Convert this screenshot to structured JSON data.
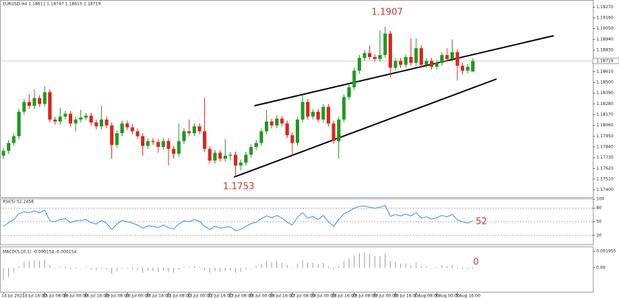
{
  "chart_data": [
    {
      "type": "candlestick",
      "title": "EURUSD,H4  1.18611 1.18747 1.18610 1.18719",
      "up_color": "#1f9a1f",
      "down_color": "#e0241b",
      "grid": false,
      "annotations": [
        "1.1907",
        "1.1753"
      ],
      "ylim": [
        1.17327,
        1.19322
      ],
      "yticks": [
        {
          "value": 1.174,
          "label": "1.17400"
        },
        {
          "value": 1.1751,
          "label": "1.17510"
        },
        {
          "value": 1.1762,
          "label": "1.17620"
        },
        {
          "value": 1.1773,
          "label": "1.17730"
        },
        {
          "value": 1.1784,
          "label": "1.17840"
        },
        {
          "value": 1.1795,
          "label": "1.17950"
        },
        {
          "value": 1.1806,
          "label": "1.18060"
        },
        {
          "value": 1.1817,
          "label": "1.18170"
        },
        {
          "value": 1.1828,
          "label": "1.18280"
        },
        {
          "value": 1.1839,
          "label": "1.18390"
        },
        {
          "value": 1.185,
          "label": "1.18500"
        },
        {
          "value": 1.1861,
          "label": "1.18610"
        },
        {
          "value": 1.1883,
          "label": "1.18830"
        },
        {
          "value": 1.1894,
          "label": "1.18940"
        },
        {
          "value": 1.1905,
          "label": "1.19050"
        },
        {
          "value": 1.1916,
          "label": "1.19160"
        },
        {
          "value": 1.1927,
          "label": "1.19270"
        }
      ],
      "categories": [
        "14 Jul 2021",
        null,
        null,
        null,
        "14 Jul 16:00",
        null,
        null,
        null,
        "15 Jul 08:00",
        null,
        null,
        null,
        "16 Jul 00:00",
        null,
        null,
        null,
        "16 Jul 16:00",
        null,
        null,
        null,
        "19 Jul 08:00",
        null,
        null,
        null,
        "20 Jul 00:00",
        null,
        null,
        null,
        "20 Jul 16:00",
        null,
        null,
        null,
        "21 Jul 08:00",
        null,
        null,
        null,
        "22 Jul 00:00",
        null,
        null,
        null,
        "22 Jul 16:00",
        null,
        null,
        null,
        "23 Jul 08:00",
        null,
        null,
        null,
        "26 Jul 00:00",
        null,
        null,
        null,
        "26 Jul 16:00",
        null,
        null,
        null,
        "27 Jul 08:00",
        null,
        null,
        null,
        "28 Jul 00:00",
        null,
        null,
        null,
        "28 Jul 16:00",
        null,
        null,
        null,
        "29 Jul 08:00",
        null,
        null,
        null,
        "30 Jul 00:00",
        null,
        null,
        null,
        "30 Jul 16:00",
        null,
        null,
        null,
        "2 Aug 08:00",
        null,
        null,
        null,
        "3 Aug 00:00",
        null,
        null,
        null,
        "3 Aug 16:00",
        null,
        null,
        null
      ],
      "open": [
        1.1775,
        1.178,
        1.1788,
        1.1795,
        1.182,
        1.183,
        1.1826,
        1.1834,
        1.1828,
        1.184,
        1.1812,
        1.181,
        1.1815,
        1.1818,
        1.1808,
        1.1812,
        1.1814,
        1.1816,
        1.1809,
        1.1805,
        1.1812,
        1.1806,
        1.1786,
        1.1798,
        1.1808,
        1.1804,
        1.18,
        1.1795,
        1.1785,
        1.179,
        1.1789,
        1.1784,
        1.179,
        1.1782,
        1.1777,
        1.179,
        1.18,
        1.1798,
        1.1805,
        1.18,
        1.1782,
        1.177,
        1.1778,
        1.1772,
        1.1775,
        1.1776,
        1.1765,
        1.1768,
        1.1776,
        1.1784,
        1.1788,
        1.18,
        1.181,
        1.1806,
        1.1813,
        1.1808,
        1.1796,
        1.1788,
        1.1812,
        1.183,
        1.1815,
        1.182,
        1.1812,
        1.1825,
        1.1808,
        1.179,
        1.1812,
        1.1835,
        1.1845,
        1.1862,
        1.1875,
        1.188,
        1.1876,
        1.1874,
        1.1878,
        1.19,
        1.1865,
        1.1872,
        1.1868,
        1.1876,
        1.187,
        1.1885,
        1.1868,
        1.1872,
        1.1866,
        1.187,
        1.1878,
        1.1874,
        1.1881,
        1.1867,
        1.1862,
        1.18611
      ],
      "high": [
        1.1783,
        1.1791,
        1.1798,
        1.1823,
        1.1833,
        1.1838,
        1.1843,
        1.1837,
        1.1846,
        1.1843,
        1.1815,
        1.1824,
        1.1821,
        1.1821,
        1.1815,
        1.1822,
        1.1819,
        1.1819,
        1.1812,
        1.1826,
        1.1815,
        1.1809,
        1.1801,
        1.1811,
        1.1811,
        1.1807,
        1.1803,
        1.1798,
        1.1793,
        1.1793,
        1.1792,
        1.1793,
        1.1793,
        1.1785,
        1.1808,
        1.1803,
        1.1812,
        1.1808,
        1.1808,
        1.1834,
        1.1785,
        1.1781,
        1.1781,
        1.1792,
        1.1779,
        1.1779,
        1.1771,
        1.1779,
        1.1787,
        1.1791,
        1.1803,
        1.1822,
        1.1813,
        1.1816,
        1.1816,
        1.1811,
        1.1799,
        1.1815,
        1.1838,
        1.1833,
        1.1823,
        1.1823,
        1.1828,
        1.1828,
        1.1811,
        1.1815,
        1.1838,
        1.1848,
        1.1865,
        1.1878,
        1.1883,
        1.1888,
        1.1879,
        1.1903,
        1.1907,
        1.1903,
        1.1875,
        1.1875,
        1.1879,
        1.1895,
        1.1895,
        1.1888,
        1.1875,
        1.1875,
        1.1873,
        1.1881,
        1.1885,
        1.1894,
        1.1884,
        1.187,
        1.1869,
        1.18747
      ],
      "low": [
        1.1772,
        1.1777,
        1.1785,
        1.1792,
        1.1817,
        1.1823,
        1.1823,
        1.1825,
        1.1825,
        1.1809,
        1.1807,
        1.1807,
        1.1812,
        1.1805,
        1.18,
        1.1809,
        1.1811,
        1.1806,
        1.1802,
        1.1802,
        1.1803,
        1.1772,
        1.1783,
        1.1795,
        1.1801,
        1.1797,
        1.1792,
        1.1775,
        1.1782,
        1.1786,
        1.1778,
        1.1781,
        1.1765,
        1.1772,
        1.1774,
        1.1787,
        1.1795,
        1.1795,
        1.1797,
        1.1779,
        1.1767,
        1.1767,
        1.1769,
        1.1769,
        1.177,
        1.1753,
        1.176,
        1.1765,
        1.1773,
        1.1781,
        1.1785,
        1.1797,
        1.1803,
        1.1803,
        1.1805,
        1.1793,
        1.1775,
        1.1785,
        1.1809,
        1.1812,
        1.1812,
        1.1809,
        1.1809,
        1.1805,
        1.1787,
        1.1772,
        1.1809,
        1.1832,
        1.1842,
        1.1859,
        1.1872,
        1.1873,
        1.1871,
        1.1871,
        1.1875,
        1.1855,
        1.1862,
        1.1865,
        1.1865,
        1.1867,
        1.1867,
        1.1865,
        1.1865,
        1.1863,
        1.1863,
        1.1867,
        1.1871,
        1.1871,
        1.1852,
        1.1858,
        1.1859,
        1.1861
      ],
      "close": [
        1.178,
        1.1788,
        1.1795,
        1.182,
        1.183,
        1.1826,
        1.1834,
        1.1828,
        1.184,
        1.1812,
        1.181,
        1.1815,
        1.1818,
        1.1808,
        1.1812,
        1.1814,
        1.1816,
        1.1809,
        1.1805,
        1.1812,
        1.1806,
        1.1786,
        1.1798,
        1.1808,
        1.1804,
        1.18,
        1.1795,
        1.1785,
        1.179,
        1.1789,
        1.1784,
        1.179,
        1.1782,
        1.1777,
        1.179,
        1.18,
        1.1798,
        1.1805,
        1.18,
        1.1782,
        1.177,
        1.1778,
        1.1772,
        1.1775,
        1.1776,
        1.1765,
        1.1768,
        1.1776,
        1.1784,
        1.1788,
        1.18,
        1.181,
        1.1806,
        1.1813,
        1.1808,
        1.1796,
        1.1788,
        1.1812,
        1.183,
        1.1815,
        1.182,
        1.1812,
        1.1825,
        1.1808,
        1.179,
        1.1812,
        1.1835,
        1.1845,
        1.1862,
        1.1875,
        1.188,
        1.1876,
        1.1874,
        1.1878,
        1.19,
        1.1865,
        1.1872,
        1.1868,
        1.1876,
        1.187,
        1.1885,
        1.1868,
        1.1872,
        1.1866,
        1.187,
        1.1878,
        1.1874,
        1.1881,
        1.1867,
        1.1862,
        1.1866,
        1.18719
      ]
    },
    {
      "type": "line",
      "title": "RSI(5) 52.2458",
      "color": "#2f8fd0",
      "annotation": "52",
      "ylim": [
        0,
        100
      ],
      "yticks": [
        100,
        80,
        50,
        20
      ],
      "levels": [
        80,
        50,
        20
      ],
      "values": [
        40,
        48,
        55,
        68,
        72,
        70,
        74,
        70,
        76,
        52,
        50,
        55,
        57,
        48,
        52,
        53,
        55,
        48,
        45,
        53,
        47,
        33,
        45,
        53,
        50,
        47,
        43,
        36,
        41,
        40,
        37,
        43,
        37,
        34,
        45,
        52,
        50,
        55,
        51,
        40,
        33,
        40,
        36,
        38,
        39,
        30,
        33,
        40,
        46,
        49,
        57,
        63,
        59,
        64,
        58,
        49,
        43,
        60,
        70,
        58,
        62,
        55,
        64,
        50,
        40,
        55,
        68,
        73,
        80,
        84,
        85,
        82,
        80,
        82,
        86,
        62,
        66,
        63,
        67,
        63,
        70,
        58,
        61,
        56,
        59,
        64,
        61,
        66,
        54,
        50,
        47,
        52
      ]
    },
    {
      "type": "bar",
      "title": "MACD(5,10,1) -0.000154 -0.000154",
      "color": "#9a9a9a",
      "annotation": "0",
      "ylim": [
        -0.00285,
        0.00228
      ],
      "yticks": [
        {
          "value": 0.001955,
          "label": "0.001955"
        },
        {
          "value": 0,
          "label": "0.00"
        }
      ],
      "values": [
        -0.0015,
        -0.0011,
        -0.0006,
        0.0002,
        0.0007,
        0.0008,
        0.0009,
        0.0008,
        0.001,
        0.0003,
        -0.0001,
        0.0001,
        0.0002,
        -0.0002,
        -0.0001,
        0,
        0.0001,
        -0.0002,
        -0.0003,
        -0.0001,
        -0.0002,
        -0.0007,
        -0.0004,
        -0.0001,
        -0.0001,
        -0.0002,
        -0.0003,
        -0.0006,
        -0.0004,
        -0.0004,
        -0.0005,
        -0.0003,
        -0.0005,
        -0.0006,
        -0.0002,
        0.0001,
        0.0001,
        0.0002,
        0.0001,
        -0.0003,
        -0.0006,
        -0.0004,
        -0.0005,
        -0.0004,
        -0.0003,
        -0.0006,
        -0.0005,
        -0.0002,
        0,
        0.0002,
        0.0005,
        0.0008,
        0.0007,
        0.0008,
        0.0006,
        0.0003,
        0,
        0.0005,
        0.0009,
        0.0006,
        0.0006,
        0.0004,
        0.0006,
        0.0002,
        -0.0002,
        0.0002,
        0.0008,
        0.0011,
        0.0015,
        0.0017,
        0.0018,
        0.0016,
        0.0014,
        0.0014,
        0.0017,
        0.0008,
        0.0007,
        0.0005,
        0.0005,
        0.0003,
        0.0006,
        0.0002,
        0.0002,
        0,
        0.0001,
        0.0003,
        0.0002,
        0.0003,
        -0.0001,
        -0.0002,
        -0.0002,
        -0.000154
      ]
    }
  ]
}
